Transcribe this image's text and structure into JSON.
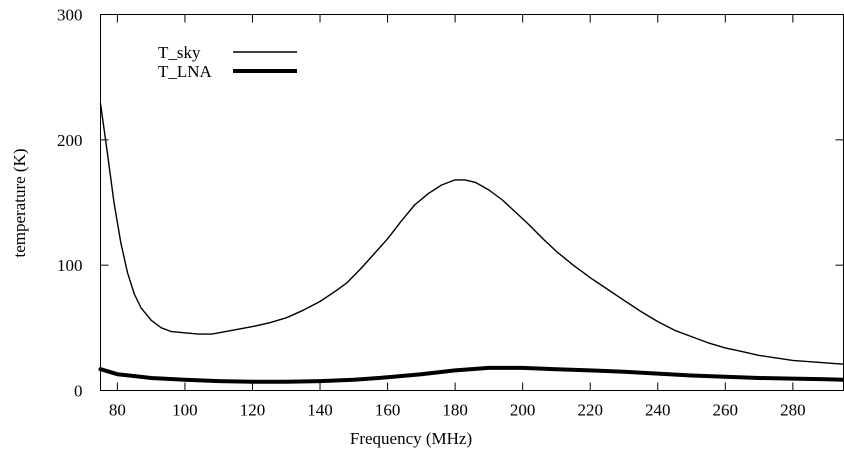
{
  "chart_data": {
    "type": "line",
    "title": "",
    "xlabel": "Frequency (MHz)",
    "ylabel": "temperature (K)",
    "xlim": [
      75,
      295
    ],
    "ylim": [
      0,
      300
    ],
    "x_ticks": [
      80,
      100,
      120,
      140,
      160,
      180,
      200,
      220,
      240,
      260,
      280
    ],
    "y_ticks": [
      0,
      100,
      200,
      300
    ],
    "grid": false,
    "legend_position": "top-left",
    "series": [
      {
        "name": "T_sky",
        "color": "#000000",
        "line_style": "thin",
        "x": [
          75,
          77,
          79,
          81,
          83,
          85,
          87,
          90,
          93,
          96,
          100,
          104,
          108,
          112,
          116,
          120,
          125,
          130,
          135,
          140,
          145,
          148,
          152,
          156,
          160,
          164,
          168,
          172,
          176,
          180,
          183,
          186,
          190,
          194,
          198,
          202,
          206,
          210,
          215,
          220,
          225,
          230,
          235,
          240,
          245,
          250,
          255,
          260,
          265,
          270,
          275,
          280,
          285,
          290,
          295
        ],
        "y": [
          229,
          190,
          150,
          118,
          94,
          77,
          66,
          56,
          50,
          47,
          46,
          45,
          45,
          47,
          49,
          51,
          54,
          58,
          64,
          71,
          80,
          86,
          97,
          109,
          121,
          135,
          148,
          157,
          164,
          168,
          168,
          166,
          160,
          152,
          142,
          132,
          121,
          111,
          100,
          90,
          81,
          72,
          63,
          55,
          48,
          43,
          38,
          34,
          31,
          28,
          26,
          24,
          23,
          22,
          21
        ]
      },
      {
        "name": "T_LNA",
        "color": "#000000",
        "line_style": "thick",
        "x": [
          75,
          80,
          90,
          100,
          110,
          120,
          130,
          140,
          150,
          160,
          170,
          180,
          190,
          200,
          210,
          220,
          230,
          240,
          250,
          260,
          270,
          280,
          290,
          295
        ],
        "y": [
          17,
          13,
          10,
          8.5,
          7.5,
          7,
          7,
          7.5,
          8.5,
          10.5,
          13,
          16,
          18,
          18,
          17,
          16,
          15,
          13.5,
          12,
          11,
          10,
          9.5,
          9,
          8.5
        ]
      }
    ]
  }
}
